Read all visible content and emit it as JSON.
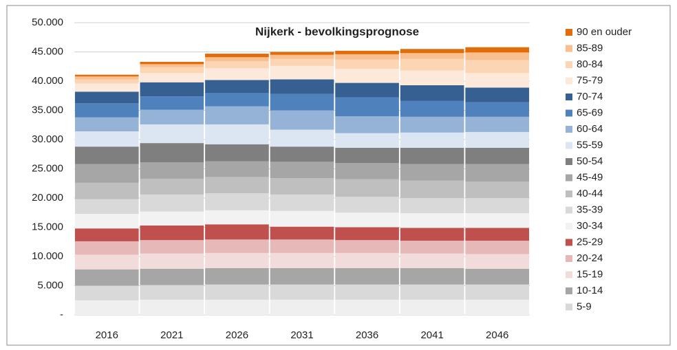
{
  "chart_data": {
    "type": "stacked_bar",
    "title": "Nijkerk - bevolkingsprognose",
    "categories": [
      "2016",
      "2021",
      "2026",
      "2031",
      "2036",
      "2041",
      "2046"
    ],
    "ylim": [
      0,
      50000
    ],
    "yticks": [
      {
        "value": 0,
        "label": "-"
      },
      {
        "value": 5000,
        "label": "5.000"
      },
      {
        "value": 10000,
        "label": "10.000"
      },
      {
        "value": 15000,
        "label": "15.000"
      },
      {
        "value": 20000,
        "label": "20.000"
      },
      {
        "value": 25000,
        "label": "25.000"
      },
      {
        "value": 30000,
        "label": "30.000"
      },
      {
        "value": 35000,
        "label": "35.000"
      },
      {
        "value": 40000,
        "label": "40.000"
      },
      {
        "value": 45000,
        "label": "45.000"
      },
      {
        "value": 50000,
        "label": "50.000"
      }
    ],
    "grid": true,
    "series": [
      {
        "color": "#efefef",
        "values": [
          2500,
          2600,
          2600,
          2600,
          2600,
          2600,
          2600
        ]
      },
      {
        "name": "5-9",
        "color": "#d9d9d9",
        "values": [
          2500,
          2500,
          2600,
          2600,
          2600,
          2600,
          2600
        ]
      },
      {
        "name": "10-14",
        "color": "#a6a6a6",
        "values": [
          2800,
          2800,
          2800,
          2800,
          2800,
          2800,
          2700
        ]
      },
      {
        "name": "15-19",
        "color": "#f2dcdb",
        "values": [
          2500,
          2600,
          2600,
          2600,
          2600,
          2500,
          2500
        ]
      },
      {
        "name": "20-24",
        "color": "#e6b9b8",
        "values": [
          2300,
          2300,
          2300,
          2300,
          2200,
          2200,
          2300
        ]
      },
      {
        "name": "25-29",
        "color": "#c0504d",
        "values": [
          2200,
          2500,
          2600,
          2200,
          2200,
          2200,
          2200
        ]
      },
      {
        "name": "30-34",
        "color": "#f2f2f2",
        "values": [
          2500,
          2400,
          2400,
          2700,
          2500,
          2500,
          2500
        ]
      },
      {
        "name": "35-39",
        "color": "#d9d9d9",
        "values": [
          2500,
          2900,
          2900,
          2800,
          2700,
          2600,
          2600
        ]
      },
      {
        "name": "40-44",
        "color": "#bfbfbf",
        "values": [
          2800,
          2700,
          2800,
          2800,
          3000,
          3000,
          2800
        ]
      },
      {
        "name": "45-49",
        "color": "#a6a6a6",
        "values": [
          3200,
          2800,
          2700,
          2800,
          2800,
          2800,
          3000
        ]
      },
      {
        "name": "50-54",
        "color": "#7f7f7f",
        "values": [
          3000,
          3300,
          2900,
          2600,
          2600,
          2800,
          2800
        ]
      },
      {
        "name": "55-59",
        "color": "#dce6f2",
        "values": [
          2600,
          3200,
          3400,
          2900,
          2500,
          2600,
          2700
        ]
      },
      {
        "name": "60-64",
        "color": "#95b3d7",
        "values": [
          2400,
          2500,
          3100,
          3300,
          2900,
          2700,
          2600
        ]
      },
      {
        "name": "65-69",
        "color": "#4f81bd",
        "values": [
          2400,
          2300,
          2300,
          2800,
          3200,
          2700,
          2500
        ]
      },
      {
        "name": "70-74",
        "color": "#366092",
        "values": [
          2000,
          2400,
          2200,
          2500,
          2500,
          2700,
          2500
        ]
      },
      {
        "name": "75-79",
        "color": "#fde9d9",
        "values": [
          1400,
          1600,
          2000,
          2300,
          2400,
          2500,
          2500
        ]
      },
      {
        "name": "80-84",
        "color": "#fcd5b4",
        "values": [
          700,
          1000,
          1200,
          1200,
          1600,
          2000,
          2200
        ]
      },
      {
        "name": "85-89",
        "color": "#fabf8f",
        "values": [
          500,
          500,
          700,
          700,
          900,
          1000,
          1300
        ]
      },
      {
        "name": "90 en ouder",
        "color": "#e26b0a",
        "values": [
          300,
          400,
          600,
          500,
          600,
          700,
          900
        ]
      }
    ]
  }
}
